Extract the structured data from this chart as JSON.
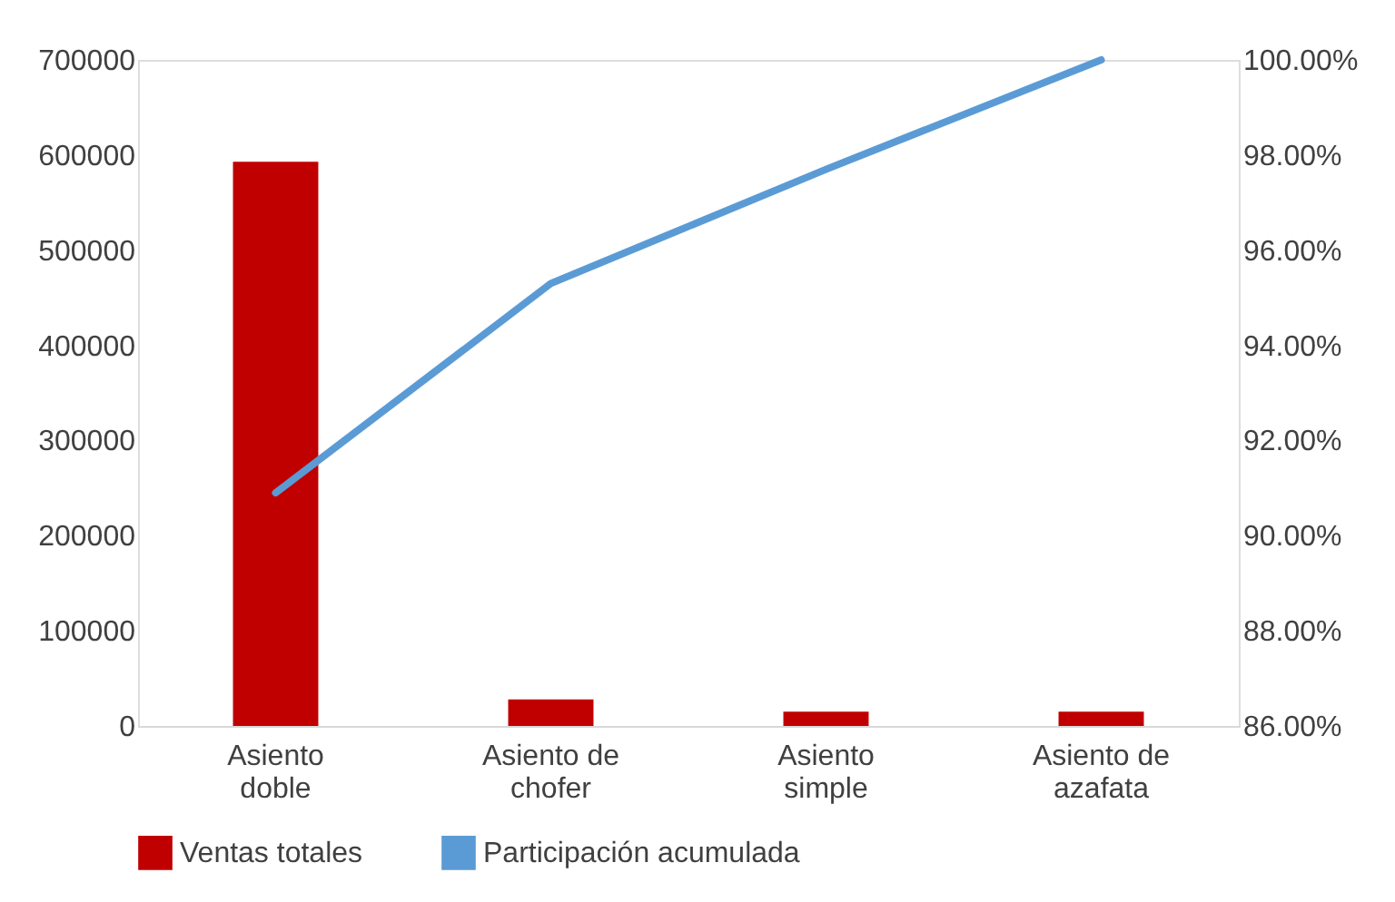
{
  "chart_data": {
    "type": "bar",
    "categories": [
      "Asiento doble",
      "Asiento de chofer",
      "Asiento simple",
      "Asiento de azafata"
    ],
    "series": [
      {
        "name": "Ventas totales",
        "color": "#c00000",
        "values": [
          593000,
          28000,
          15000,
          15000
        ]
      },
      {
        "name": "Participación acumulada",
        "color": "#5b9bd5",
        "type": "line",
        "axis": "y2",
        "values": [
          90.9,
          95.3,
          97.7,
          100
        ]
      }
    ],
    "ylim": [
      0,
      700000
    ],
    "yticks": [
      0,
      100000,
      200000,
      300000,
      400000,
      500000,
      600000,
      700000
    ],
    "y2lim": [
      86,
      100
    ],
    "y2ticks": [
      {
        "value": 86,
        "label": "86.00%"
      },
      {
        "value": 88,
        "label": "88.00%"
      },
      {
        "value": 90,
        "label": "90.00%"
      },
      {
        "value": 92,
        "label": "92.00%"
      },
      {
        "value": 94,
        "label": "94.00%"
      },
      {
        "value": 96,
        "label": "96.00%"
      },
      {
        "value": 98,
        "label": "98.00%"
      },
      {
        "value": 100,
        "label": "100.00%"
      }
    ],
    "legend": "bottom",
    "grid": false,
    "marker": "none",
    "line_style": "solid"
  }
}
